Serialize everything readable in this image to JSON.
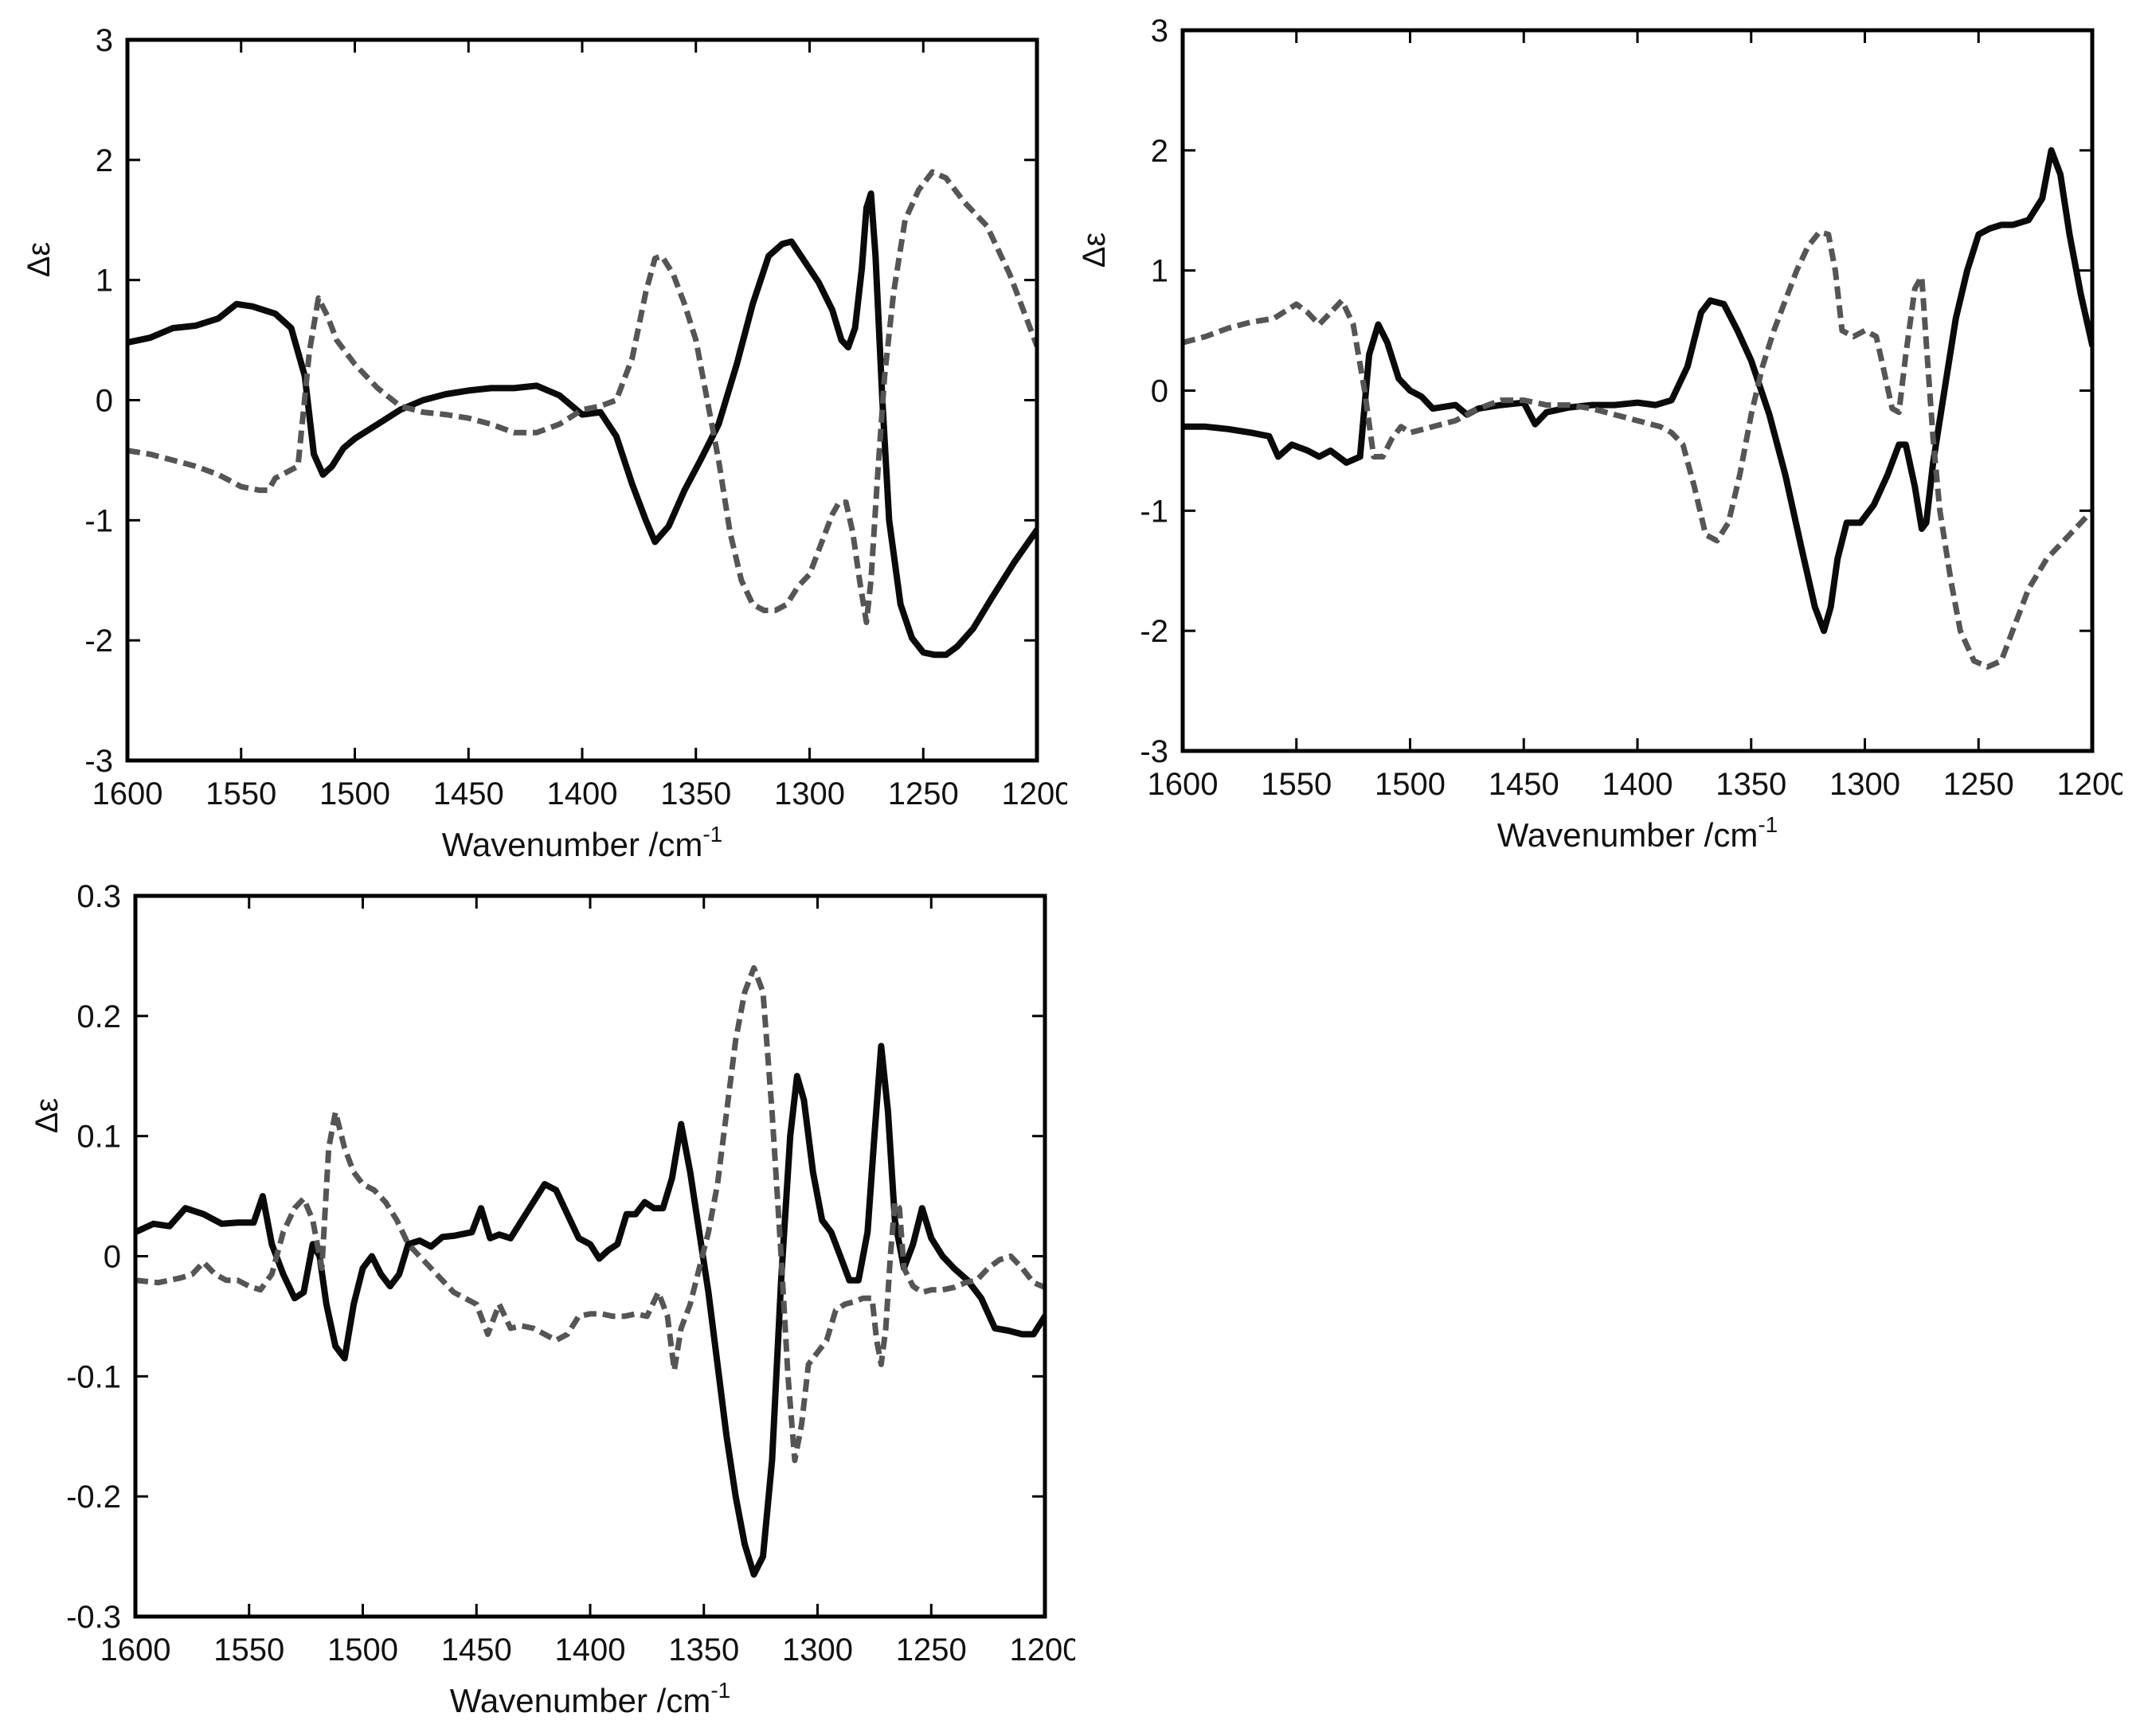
{
  "colors": {
    "solid": "#0a0a0a",
    "dashed": "#555555",
    "axis": "#000000"
  },
  "chart_data": [
    {
      "type": "line",
      "xlabel": "Wavenumber /cm",
      "xlabel_sup": "-1",
      "ylabel": "Δε",
      "xlim": [
        1600,
        1200
      ],
      "ylim": [
        -3,
        3
      ],
      "x_ticks": [
        "1600",
        "1550",
        "1500",
        "1450",
        "1400",
        "1350",
        "1300",
        "1250",
        "1200"
      ],
      "y_ticks": [
        "3",
        "2",
        "1",
        "0",
        "-1",
        "-2",
        "-3"
      ],
      "grid": false,
      "series": [
        {
          "style": "solid",
          "x": [
            1600,
            1590,
            1580,
            1570,
            1560,
            1552,
            1545,
            1535,
            1528,
            1522,
            1518,
            1514,
            1510,
            1505,
            1500,
            1490,
            1480,
            1470,
            1460,
            1450,
            1440,
            1430,
            1420,
            1410,
            1400,
            1392,
            1385,
            1378,
            1372,
            1368,
            1362,
            1355,
            1348,
            1340,
            1332,
            1325,
            1318,
            1312,
            1308,
            1302,
            1296,
            1290,
            1286,
            1283,
            1280,
            1277,
            1275,
            1273,
            1271,
            1268,
            1265,
            1260,
            1255,
            1250,
            1245,
            1240,
            1235,
            1228,
            1220,
            1210,
            1200
          ],
          "y": [
            0.48,
            0.52,
            0.6,
            0.62,
            0.68,
            0.8,
            0.78,
            0.72,
            0.6,
            0.2,
            -0.45,
            -0.62,
            -0.55,
            -0.4,
            -0.32,
            -0.2,
            -0.08,
            0.0,
            0.05,
            0.08,
            0.1,
            0.1,
            0.12,
            0.04,
            -0.12,
            -0.1,
            -0.3,
            -0.7,
            -1.0,
            -1.18,
            -1.05,
            -0.75,
            -0.5,
            -0.2,
            0.3,
            0.8,
            1.2,
            1.3,
            1.32,
            1.15,
            0.98,
            0.75,
            0.5,
            0.44,
            0.6,
            1.1,
            1.6,
            1.72,
            1.2,
            0.0,
            -1.0,
            -1.7,
            -1.98,
            -2.1,
            -2.12,
            -2.12,
            -2.05,
            -1.9,
            -1.65,
            -1.35,
            -1.08
          ]
        },
        {
          "style": "dashed",
          "x": [
            1600,
            1590,
            1580,
            1570,
            1560,
            1550,
            1542,
            1538,
            1535,
            1530,
            1525,
            1520,
            1516,
            1512,
            1508,
            1500,
            1490,
            1480,
            1470,
            1460,
            1450,
            1440,
            1430,
            1420,
            1410,
            1400,
            1392,
            1385,
            1378,
            1372,
            1368,
            1365,
            1360,
            1355,
            1350,
            1345,
            1340,
            1335,
            1330,
            1325,
            1320,
            1315,
            1310,
            1305,
            1300,
            1295,
            1290,
            1287,
            1284,
            1281,
            1278,
            1275,
            1273,
            1270,
            1267,
            1263,
            1258,
            1252,
            1246,
            1240,
            1232,
            1222,
            1212,
            1200
          ],
          "y": [
            -0.42,
            -0.45,
            -0.5,
            -0.55,
            -0.62,
            -0.72,
            -0.75,
            -0.75,
            -0.65,
            -0.6,
            -0.55,
            0.4,
            0.85,
            0.7,
            0.5,
            0.3,
            0.1,
            -0.05,
            -0.1,
            -0.12,
            -0.15,
            -0.2,
            -0.27,
            -0.27,
            -0.2,
            -0.08,
            -0.05,
            0.0,
            0.35,
            0.9,
            1.18,
            1.2,
            1.05,
            0.8,
            0.5,
            0.0,
            -0.5,
            -1.1,
            -1.5,
            -1.7,
            -1.75,
            -1.75,
            -1.7,
            -1.55,
            -1.45,
            -1.2,
            -0.95,
            -0.85,
            -0.85,
            -1.1,
            -1.5,
            -1.85,
            -1.5,
            -0.6,
            0.2,
            0.9,
            1.5,
            1.75,
            1.9,
            1.85,
            1.65,
            1.45,
            1.05,
            0.45
          ]
        }
      ]
    },
    {
      "type": "line",
      "xlabel": "Wavenumber /cm",
      "xlabel_sup": "-1",
      "ylabel": "Δε",
      "xlim": [
        1600,
        1200
      ],
      "ylim": [
        -3,
        3
      ],
      "x_ticks": [
        "1600",
        "1550",
        "1500",
        "1450",
        "1400",
        "1350",
        "1300",
        "1250",
        "1200"
      ],
      "y_ticks": [
        "3",
        "2",
        "1",
        "0",
        "-1",
        "-2",
        "-3"
      ],
      "grid": false,
      "series": [
        {
          "style": "solid",
          "x": [
            1600,
            1590,
            1580,
            1570,
            1562,
            1558,
            1552,
            1545,
            1540,
            1535,
            1528,
            1522,
            1518,
            1514,
            1510,
            1505,
            1500,
            1495,
            1490,
            1480,
            1475,
            1470,
            1460,
            1450,
            1445,
            1440,
            1430,
            1420,
            1410,
            1400,
            1392,
            1385,
            1378,
            1372,
            1368,
            1362,
            1356,
            1350,
            1342,
            1335,
            1328,
            1322,
            1318,
            1315,
            1312,
            1308,
            1302,
            1296,
            1290,
            1285,
            1282,
            1278,
            1275,
            1273,
            1270,
            1265,
            1260,
            1255,
            1250,
            1245,
            1240,
            1235,
            1228,
            1222,
            1218,
            1214,
            1210,
            1205,
            1200
          ],
          "y": [
            -0.3,
            -0.3,
            -0.32,
            -0.35,
            -0.38,
            -0.55,
            -0.45,
            -0.5,
            -0.55,
            -0.5,
            -0.6,
            -0.55,
            0.3,
            0.55,
            0.4,
            0.1,
            0.0,
            -0.05,
            -0.15,
            -0.12,
            -0.2,
            -0.15,
            -0.12,
            -0.1,
            -0.28,
            -0.18,
            -0.14,
            -0.12,
            -0.12,
            -0.1,
            -0.12,
            -0.08,
            0.2,
            0.65,
            0.75,
            0.72,
            0.5,
            0.25,
            -0.2,
            -0.7,
            -1.3,
            -1.8,
            -2.0,
            -1.8,
            -1.4,
            -1.1,
            -1.1,
            -0.95,
            -0.7,
            -0.45,
            -0.45,
            -0.8,
            -1.15,
            -1.1,
            -0.6,
            0.0,
            0.6,
            1.0,
            1.3,
            1.35,
            1.38,
            1.38,
            1.42,
            1.6,
            2.0,
            1.8,
            1.3,
            0.8,
            0.38
          ]
        },
        {
          "style": "dashed",
          "x": [
            1600,
            1590,
            1580,
            1570,
            1560,
            1550,
            1545,
            1540,
            1535,
            1530,
            1525,
            1520,
            1516,
            1512,
            1508,
            1504,
            1500,
            1490,
            1480,
            1470,
            1460,
            1450,
            1440,
            1430,
            1420,
            1410,
            1400,
            1390,
            1385,
            1380,
            1375,
            1370,
            1365,
            1360,
            1355,
            1350,
            1345,
            1340,
            1335,
            1330,
            1325,
            1320,
            1316,
            1313,
            1310,
            1305,
            1300,
            1295,
            1292,
            1288,
            1285,
            1282,
            1278,
            1275,
            1273,
            1270,
            1267,
            1262,
            1258,
            1252,
            1246,
            1240,
            1234,
            1228,
            1220,
            1210,
            1200
          ],
          "y": [
            0.4,
            0.45,
            0.52,
            0.57,
            0.6,
            0.72,
            0.65,
            0.55,
            0.65,
            0.75,
            0.55,
            0.0,
            -0.55,
            -0.55,
            -0.4,
            -0.3,
            -0.35,
            -0.3,
            -0.25,
            -0.15,
            -0.08,
            -0.08,
            -0.12,
            -0.12,
            -0.15,
            -0.2,
            -0.25,
            -0.3,
            -0.35,
            -0.45,
            -0.8,
            -1.2,
            -1.25,
            -1.1,
            -0.7,
            -0.2,
            0.2,
            0.5,
            0.75,
            1.0,
            1.2,
            1.32,
            1.3,
            1.0,
            0.5,
            0.45,
            0.5,
            0.45,
            0.2,
            -0.15,
            -0.18,
            0.3,
            0.85,
            0.95,
            0.4,
            -0.4,
            -1.0,
            -1.6,
            -2.0,
            -2.25,
            -2.3,
            -2.25,
            -1.95,
            -1.65,
            -1.4,
            -1.2,
            -1.0
          ]
        }
      ]
    },
    {
      "type": "line",
      "xlabel": "Wavenumber /cm",
      "xlabel_sup": "-1",
      "ylabel": "Δε",
      "xlim": [
        1600,
        1200
      ],
      "ylim": [
        -0.3,
        0.3
      ],
      "x_ticks": [
        "1600",
        "1550",
        "1500",
        "1450",
        "1400",
        "1350",
        "1300",
        "1250",
        "1200"
      ],
      "y_ticks": [
        "0.3",
        "0.2",
        "0.1",
        "0",
        "-0.1",
        "-0.2",
        "-0.3"
      ],
      "grid": false,
      "series": [
        {
          "style": "solid",
          "x": [
            1600,
            1592,
            1585,
            1578,
            1570,
            1562,
            1555,
            1548,
            1544,
            1540,
            1535,
            1530,
            1526,
            1522,
            1519,
            1516,
            1512,
            1508,
            1504,
            1500,
            1496,
            1492,
            1488,
            1484,
            1480,
            1475,
            1470,
            1465,
            1460,
            1452,
            1448,
            1444,
            1440,
            1435,
            1430,
            1425,
            1420,
            1415,
            1410,
            1405,
            1400,
            1396,
            1392,
            1388,
            1384,
            1380,
            1376,
            1372,
            1368,
            1364,
            1360,
            1356,
            1352,
            1348,
            1344,
            1340,
            1336,
            1332,
            1328,
            1324,
            1320,
            1316,
            1312,
            1309,
            1306,
            1302,
            1298,
            1294,
            1290,
            1286,
            1282,
            1278,
            1275,
            1272,
            1269,
            1266,
            1262,
            1258,
            1254,
            1250,
            1245,
            1240,
            1234,
            1228,
            1222,
            1216,
            1210,
            1205,
            1200
          ],
          "y": [
            0.02,
            0.027,
            0.025,
            0.04,
            0.035,
            0.027,
            0.028,
            0.028,
            0.05,
            0.01,
            -0.015,
            -0.035,
            -0.03,
            0.01,
            0.0,
            -0.04,
            -0.075,
            -0.085,
            -0.04,
            -0.01,
            0.0,
            -0.015,
            -0.025,
            -0.015,
            0.01,
            0.013,
            0.008,
            0.016,
            0.017,
            0.02,
            0.04,
            0.015,
            0.018,
            0.015,
            0.03,
            0.045,
            0.06,
            0.055,
            0.035,
            0.015,
            0.01,
            -0.002,
            0.005,
            0.01,
            0.035,
            0.035,
            0.045,
            0.04,
            0.04,
            0.065,
            0.11,
            0.07,
            0.02,
            -0.03,
            -0.09,
            -0.15,
            -0.2,
            -0.24,
            -0.265,
            -0.25,
            -0.17,
            -0.02,
            0.1,
            0.15,
            0.13,
            0.07,
            0.03,
            0.02,
            0.0,
            -0.02,
            -0.02,
            0.02,
            0.1,
            0.175,
            0.12,
            0.03,
            -0.01,
            0.01,
            0.04,
            0.015,
            0.0,
            -0.01,
            -0.02,
            -0.035,
            -0.06,
            -0.062,
            -0.065,
            -0.065,
            -0.05
          ]
        },
        {
          "style": "dashed",
          "x": [
            1600,
            1590,
            1580,
            1575,
            1570,
            1565,
            1560,
            1555,
            1550,
            1545,
            1540,
            1535,
            1530,
            1526,
            1522,
            1518,
            1515,
            1512,
            1508,
            1504,
            1500,
            1495,
            1490,
            1485,
            1480,
            1475,
            1470,
            1465,
            1460,
            1455,
            1450,
            1445,
            1440,
            1435,
            1430,
            1425,
            1420,
            1415,
            1410,
            1405,
            1400,
            1395,
            1390,
            1385,
            1380,
            1375,
            1370,
            1366,
            1363,
            1360,
            1356,
            1352,
            1348,
            1344,
            1340,
            1336,
            1332,
            1328,
            1324,
            1320,
            1316,
            1313,
            1310,
            1307,
            1304,
            1300,
            1296,
            1292,
            1288,
            1284,
            1280,
            1276,
            1274,
            1272,
            1270,
            1268,
            1266,
            1264,
            1262,
            1258,
            1254,
            1250,
            1245,
            1240,
            1235,
            1230,
            1225,
            1220,
            1215,
            1210,
            1205,
            1200
          ],
          "y": [
            -0.02,
            -0.022,
            -0.018,
            -0.015,
            -0.005,
            -0.015,
            -0.02,
            -0.02,
            -0.025,
            -0.028,
            -0.015,
            0.02,
            0.04,
            0.048,
            0.03,
            -0.01,
            0.09,
            0.12,
            0.09,
            0.07,
            0.06,
            0.055,
            0.045,
            0.03,
            0.01,
            0.0,
            -0.01,
            -0.02,
            -0.03,
            -0.035,
            -0.04,
            -0.065,
            -0.04,
            -0.06,
            -0.058,
            -0.06,
            -0.065,
            -0.07,
            -0.065,
            -0.05,
            -0.048,
            -0.048,
            -0.05,
            -0.05,
            -0.048,
            -0.05,
            -0.03,
            -0.05,
            -0.095,
            -0.06,
            -0.04,
            -0.01,
            0.02,
            0.06,
            0.12,
            0.18,
            0.22,
            0.24,
            0.22,
            0.12,
            0.0,
            -0.1,
            -0.17,
            -0.14,
            -0.09,
            -0.08,
            -0.07,
            -0.045,
            -0.04,
            -0.038,
            -0.035,
            -0.035,
            -0.07,
            -0.09,
            -0.06,
            0.0,
            0.045,
            0.04,
            -0.01,
            -0.025,
            -0.03,
            -0.028,
            -0.028,
            -0.026,
            -0.022,
            -0.02,
            -0.01,
            -0.003,
            0.0,
            -0.01,
            -0.022,
            -0.026
          ]
        }
      ]
    }
  ]
}
